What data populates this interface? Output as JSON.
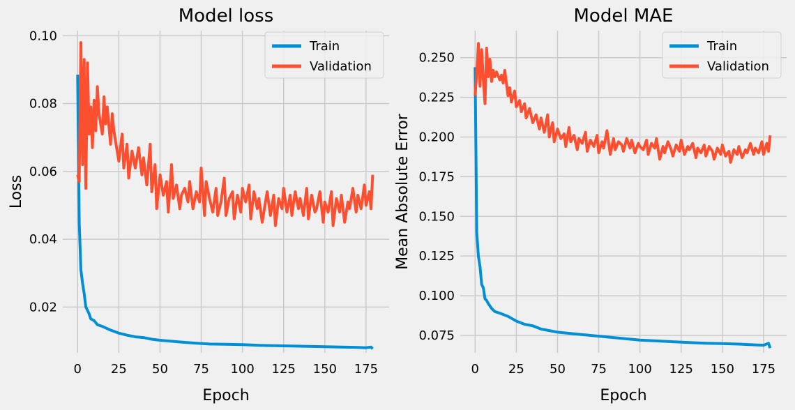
{
  "colors": {
    "background": "#f0f0f0",
    "grid": "#cbcbcb",
    "train": "#008fd5",
    "validation": "#fc4f30",
    "text": "#000000"
  },
  "chart_data": [
    {
      "type": "line",
      "title": "Model loss",
      "xlabel": "Epoch",
      "ylabel": "Loss",
      "xlim": [
        -9,
        189
      ],
      "ylim": [
        0.0065,
        0.1015
      ],
      "xticks": [
        0,
        25,
        50,
        75,
        100,
        125,
        150,
        175
      ],
      "xtick_labels": [
        "0",
        "25",
        "50",
        "75",
        "100",
        "125",
        "150",
        "175"
      ],
      "yticks": [
        0.02,
        0.04,
        0.06,
        0.08,
        0.1
      ],
      "ytick_labels": [
        "0.02",
        "0.04",
        "0.06",
        "0.08",
        "0.10"
      ],
      "grid": true,
      "legend": "top-right",
      "series": [
        {
          "name": "Train",
          "x": [
            0,
            1,
            2,
            3,
            4,
            5,
            6,
            7,
            8,
            10,
            12,
            15,
            20,
            25,
            30,
            35,
            40,
            45,
            50,
            60,
            70,
            80,
            90,
            100,
            110,
            120,
            130,
            140,
            150,
            160,
            170,
            175,
            178,
            179
          ],
          "values": [
            0.0885,
            0.045,
            0.031,
            0.027,
            0.024,
            0.02,
            0.019,
            0.018,
            0.0165,
            0.016,
            0.0148,
            0.0143,
            0.0132,
            0.0123,
            0.0117,
            0.0112,
            0.011,
            0.0105,
            0.0102,
            0.0098,
            0.0094,
            0.0091,
            0.009,
            0.0089,
            0.0087,
            0.0086,
            0.0085,
            0.0084,
            0.0083,
            0.0082,
            0.0081,
            0.008,
            0.0082,
            0.0077
          ]
        },
        {
          "name": "Validation",
          "x": [
            0,
            1,
            2,
            3,
            4,
            5,
            6,
            7,
            8,
            9,
            10,
            11,
            12,
            13,
            15,
            16,
            17,
            18,
            20,
            21,
            22,
            24,
            25,
            27,
            28,
            30,
            31,
            33,
            35,
            37,
            39,
            40,
            42,
            44,
            45,
            47,
            48,
            50,
            52,
            54,
            55,
            57,
            58,
            60,
            62,
            63,
            65,
            67,
            68,
            70,
            72,
            74,
            75,
            77,
            78,
            80,
            82,
            84,
            85,
            87,
            89,
            90,
            92,
            94,
            95,
            97,
            99,
            100,
            102,
            104,
            105,
            107,
            109,
            110,
            112,
            114,
            115,
            117,
            119,
            120,
            122,
            124,
            125,
            127,
            129,
            130,
            132,
            134,
            135,
            137,
            139,
            140,
            142,
            144,
            145,
            147,
            149,
            150,
            152,
            154,
            155,
            157,
            159,
            160,
            162,
            164,
            165,
            167,
            169,
            170,
            172,
            174,
            175,
            177,
            178,
            179
          ],
          "values": [
            0.059,
            0.057,
            0.098,
            0.062,
            0.093,
            0.055,
            0.092,
            0.071,
            0.079,
            0.067,
            0.081,
            0.072,
            0.085,
            0.077,
            0.071,
            0.082,
            0.074,
            0.079,
            0.068,
            0.077,
            0.072,
            0.066,
            0.063,
            0.071,
            0.061,
            0.068,
            0.058,
            0.066,
            0.061,
            0.067,
            0.059,
            0.064,
            0.056,
            0.068,
            0.054,
            0.062,
            0.049,
            0.059,
            0.053,
            0.057,
            0.048,
            0.062,
            0.052,
            0.056,
            0.049,
            0.053,
            0.055,
            0.051,
            0.057,
            0.049,
            0.054,
            0.051,
            0.061,
            0.047,
            0.057,
            0.052,
            0.048,
            0.055,
            0.047,
            0.051,
            0.058,
            0.047,
            0.052,
            0.054,
            0.046,
            0.053,
            0.048,
            0.055,
            0.051,
            0.056,
            0.046,
            0.054,
            0.049,
            0.052,
            0.045,
            0.051,
            0.054,
            0.047,
            0.053,
            0.044,
            0.052,
            0.049,
            0.055,
            0.048,
            0.053,
            0.047,
            0.054,
            0.049,
            0.052,
            0.047,
            0.055,
            0.046,
            0.053,
            0.048,
            0.049,
            0.054,
            0.045,
            0.051,
            0.048,
            0.054,
            0.044,
            0.052,
            0.048,
            0.053,
            0.045,
            0.051,
            0.049,
            0.055,
            0.048,
            0.053,
            0.049,
            0.056,
            0.05,
            0.054,
            0.049,
            0.059
          ]
        }
      ]
    },
    {
      "type": "line",
      "title": "Model MAE",
      "xlabel": "Epoch",
      "ylabel": "Mean Absolute Error",
      "xlim": [
        -9,
        189
      ],
      "ylim": [
        0.064,
        0.267
      ],
      "xticks": [
        0,
        25,
        50,
        75,
        100,
        125,
        150,
        175
      ],
      "xtick_labels": [
        "0",
        "25",
        "50",
        "75",
        "100",
        "125",
        "150",
        "175"
      ],
      "yticks": [
        0.075,
        0.1,
        0.125,
        0.15,
        0.175,
        0.2,
        0.225,
        0.25
      ],
      "ytick_labels": [
        "0.075",
        "0.100",
        "0.125",
        "0.150",
        "0.175",
        "0.200",
        "0.225",
        "0.250"
      ],
      "grid": true,
      "legend": "top-right",
      "series": [
        {
          "name": "Train",
          "x": [
            0,
            1,
            2,
            3,
            4,
            5,
            6,
            7,
            8,
            10,
            12,
            15,
            20,
            25,
            30,
            35,
            40,
            45,
            50,
            60,
            70,
            80,
            90,
            100,
            110,
            120,
            130,
            140,
            150,
            160,
            170,
            175,
            178,
            179
          ],
          "values": [
            0.244,
            0.14,
            0.125,
            0.118,
            0.107,
            0.105,
            0.098,
            0.097,
            0.095,
            0.092,
            0.09,
            0.089,
            0.087,
            0.084,
            0.082,
            0.081,
            0.079,
            0.078,
            0.077,
            0.076,
            0.075,
            0.074,
            0.073,
            0.072,
            0.0715,
            0.071,
            0.0705,
            0.07,
            0.0698,
            0.0695,
            0.069,
            0.0688,
            0.07,
            0.067
          ]
        },
        {
          "name": "Validation",
          "x": [
            0,
            1,
            2,
            3,
            4,
            5,
            6,
            7,
            8,
            9,
            10,
            11,
            12,
            13,
            15,
            16,
            17,
            18,
            20,
            21,
            22,
            24,
            25,
            27,
            28,
            30,
            31,
            33,
            35,
            37,
            39,
            40,
            42,
            44,
            45,
            47,
            48,
            50,
            52,
            54,
            55,
            57,
            58,
            60,
            62,
            63,
            65,
            67,
            68,
            70,
            72,
            74,
            75,
            77,
            78,
            80,
            82,
            84,
            85,
            87,
            89,
            90,
            92,
            94,
            95,
            97,
            99,
            100,
            102,
            104,
            105,
            107,
            109,
            110,
            112,
            114,
            115,
            117,
            119,
            120,
            122,
            124,
            125,
            127,
            129,
            130,
            132,
            134,
            135,
            137,
            139,
            140,
            142,
            144,
            145,
            147,
            149,
            150,
            152,
            154,
            155,
            157,
            159,
            160,
            162,
            164,
            165,
            167,
            169,
            170,
            172,
            174,
            175,
            177,
            178,
            179
          ],
          "values": [
            0.226,
            0.24,
            0.259,
            0.232,
            0.255,
            0.236,
            0.221,
            0.256,
            0.238,
            0.249,
            0.235,
            0.242,
            0.238,
            0.241,
            0.236,
            0.239,
            0.234,
            0.242,
            0.226,
            0.231,
            0.222,
            0.229,
            0.219,
            0.223,
            0.216,
            0.221,
            0.212,
            0.218,
            0.209,
            0.214,
            0.205,
            0.212,
            0.203,
            0.214,
            0.2,
            0.209,
            0.197,
            0.205,
            0.199,
            0.202,
            0.194,
            0.206,
            0.197,
            0.201,
            0.192,
            0.199,
            0.196,
            0.203,
            0.191,
            0.198,
            0.194,
            0.201,
            0.19,
            0.197,
            0.193,
            0.204,
            0.189,
            0.199,
            0.192,
            0.197,
            0.195,
            0.191,
            0.199,
            0.193,
            0.198,
            0.19,
            0.196,
            0.194,
            0.192,
            0.198,
            0.189,
            0.196,
            0.193,
            0.199,
            0.186,
            0.194,
            0.19,
            0.197,
            0.192,
            0.188,
            0.195,
            0.191,
            0.198,
            0.189,
            0.194,
            0.192,
            0.196,
            0.187,
            0.193,
            0.19,
            0.195,
            0.188,
            0.194,
            0.191,
            0.186,
            0.193,
            0.189,
            0.195,
            0.188,
            0.191,
            0.184,
            0.192,
            0.189,
            0.194,
            0.187,
            0.192,
            0.19,
            0.196,
            0.189,
            0.193,
            0.19,
            0.197,
            0.189,
            0.196,
            0.191,
            0.201
          ]
        }
      ]
    }
  ]
}
